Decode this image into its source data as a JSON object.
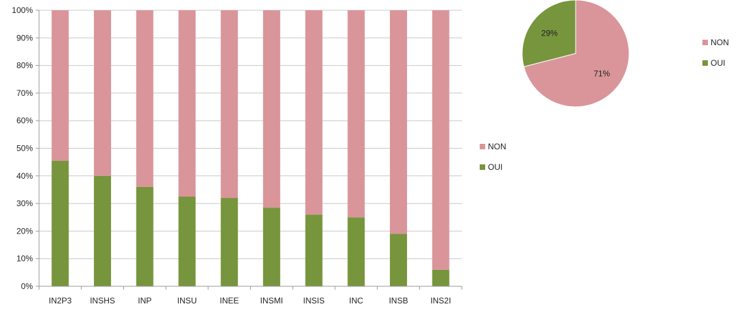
{
  "colors": {
    "non": "#D9959A",
    "oui": "#77953C",
    "grid": "#C8C8C8",
    "axis": "#9A9A9A"
  },
  "chart_data": [
    {
      "type": "bar",
      "stacked": true,
      "percent_stacked": true,
      "categories": [
        "IN2P3",
        "INSHS",
        "INP",
        "INSU",
        "INEE",
        "INSMI",
        "INSIS",
        "INC",
        "INSB",
        "INS2I"
      ],
      "series": [
        {
          "name": "OUI",
          "values": [
            45.5,
            40,
            36,
            32.5,
            32,
            28.5,
            26,
            25,
            19,
            6
          ],
          "color_key": "oui"
        },
        {
          "name": "NON",
          "values": [
            54.5,
            60,
            64,
            67.5,
            68,
            71.5,
            74,
            75,
            81,
            94
          ],
          "color_key": "non"
        }
      ],
      "y_ticks": [
        "0%",
        "10%",
        "20%",
        "30%",
        "40%",
        "50%",
        "60%",
        "70%",
        "80%",
        "90%",
        "100%"
      ],
      "ylim": [
        0,
        100
      ],
      "grid": true,
      "legend": {
        "placement": "right",
        "entries": [
          "NON",
          "OUI"
        ]
      },
      "title": "",
      "xlabel": "",
      "ylabel": ""
    },
    {
      "type": "pie",
      "slices": [
        {
          "name": "NON",
          "value": 71,
          "label": "71%",
          "color_key": "non"
        },
        {
          "name": "OUI",
          "value": 29,
          "label": "29%",
          "color_key": "oui"
        }
      ],
      "legend": {
        "placement": "right",
        "entries": [
          "NON",
          "OUI"
        ]
      },
      "title": ""
    }
  ]
}
